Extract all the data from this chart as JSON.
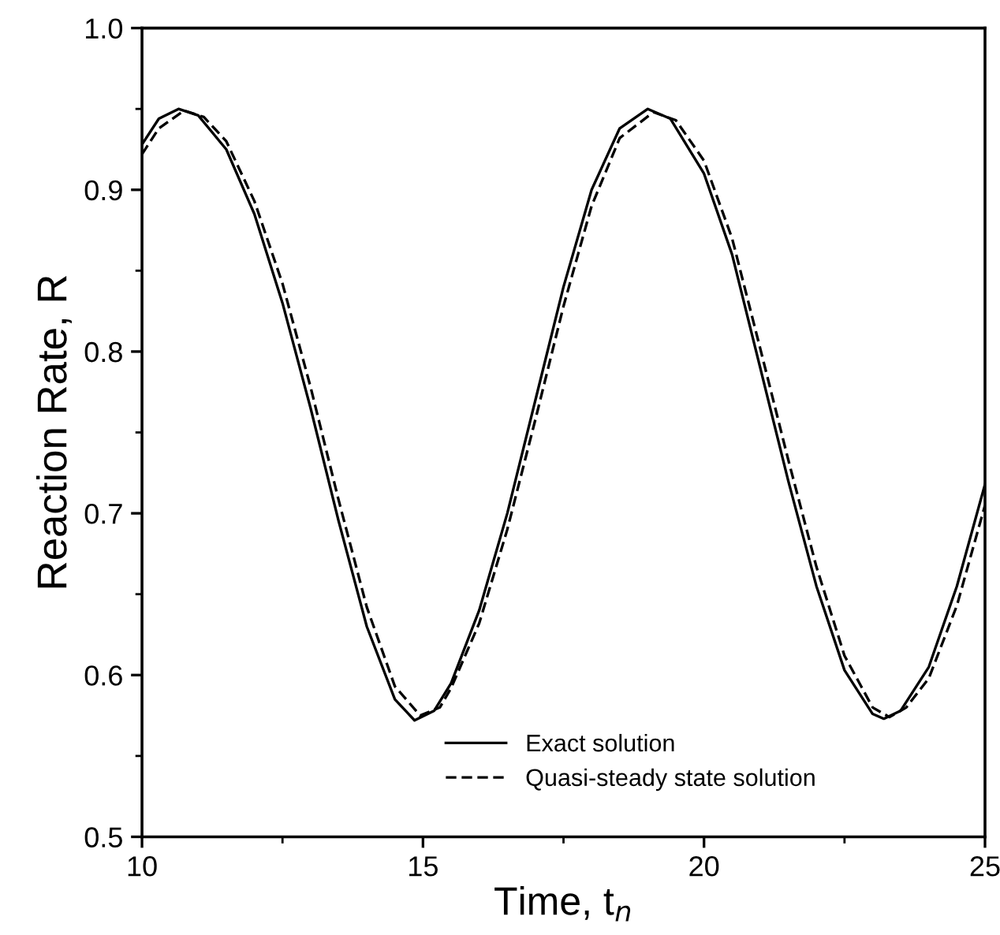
{
  "chart_data": {
    "type": "line",
    "xlabel": "Time, t$_{n}$",
    "ylabel": "Reaction Rate, R",
    "xlim": [
      10,
      25
    ],
    "ylim": [
      0.5,
      1.0
    ],
    "xticks": [
      10,
      15,
      20,
      25
    ],
    "yticks": [
      0.5,
      0.6,
      0.7,
      0.8,
      0.9,
      {
        "value": 1.0,
        "label": "1.0"
      }
    ],
    "grid": false,
    "legend": "bottom",
    "marker": "none",
    "series": [
      {
        "name": "Exact solution",
        "color": "#000000",
        "line_style": "solid",
        "x": [
          10,
          10.3,
          10.65,
          11,
          11.5,
          12,
          12.5,
          13,
          13.5,
          14,
          14.5,
          14.85,
          15.2,
          15.5,
          16,
          16.5,
          17,
          17.5,
          18,
          18.5,
          19,
          19.4,
          20,
          20.5,
          21,
          21.5,
          22,
          22.5,
          23,
          23.2,
          23.5,
          24,
          24.5,
          25
        ],
        "values": [
          0.928,
          0.944,
          0.95,
          0.946,
          0.925,
          0.885,
          0.83,
          0.765,
          0.695,
          0.63,
          0.585,
          0.572,
          0.578,
          0.595,
          0.64,
          0.7,
          0.77,
          0.84,
          0.9,
          0.938,
          0.95,
          0.944,
          0.91,
          0.86,
          0.79,
          0.72,
          0.655,
          0.603,
          0.576,
          0.573,
          0.578,
          0.605,
          0.655,
          0.718
        ]
      },
      {
        "name": "Quasi-steady state solution",
        "color": "#000000",
        "line_style": "dashed",
        "x": [
          10,
          10.3,
          10.75,
          11.1,
          11.5,
          12,
          12.5,
          13,
          13.5,
          14,
          14.5,
          14.95,
          15.3,
          15.5,
          16,
          16.5,
          17,
          17.5,
          18,
          18.5,
          19.1,
          19.5,
          20,
          20.5,
          21,
          21.5,
          22,
          22.5,
          23,
          23.3,
          23.6,
          24,
          24.5,
          25
        ],
        "values": [
          0.922,
          0.938,
          0.949,
          0.945,
          0.93,
          0.893,
          0.842,
          0.778,
          0.708,
          0.642,
          0.593,
          0.575,
          0.58,
          0.592,
          0.632,
          0.69,
          0.758,
          0.828,
          0.89,
          0.932,
          0.948,
          0.943,
          0.918,
          0.87,
          0.802,
          0.733,
          0.667,
          0.612,
          0.58,
          0.574,
          0.58,
          0.598,
          0.643,
          0.705
        ]
      }
    ]
  }
}
